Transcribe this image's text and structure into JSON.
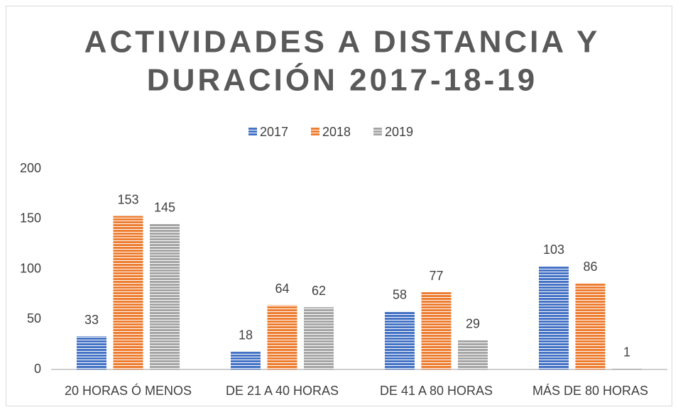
{
  "chart_data": {
    "type": "bar",
    "title": [
      "ACTIVIDADES A DISTANCIA Y",
      "DURACIÓN 2017-18-19"
    ],
    "categories": [
      "20 HORAS Ó MENOS",
      "DE 21 A 40 HORAS",
      "DE 41 A 80 HORAS",
      "MÁS DE 80 HORAS"
    ],
    "series": [
      {
        "name": "2017",
        "color": "#4472c4",
        "values": [
          33,
          18,
          58,
          103
        ]
      },
      {
        "name": "2018",
        "color": "#ed7d31",
        "values": [
          153,
          64,
          77,
          86
        ]
      },
      {
        "name": "2019",
        "color": "#a5a5a5",
        "values": [
          145,
          62,
          29,
          1
        ]
      }
    ],
    "ylim": [
      0,
      200
    ],
    "yticks": [
      0,
      50,
      100,
      150,
      200
    ],
    "grid": false,
    "legend": "top"
  }
}
